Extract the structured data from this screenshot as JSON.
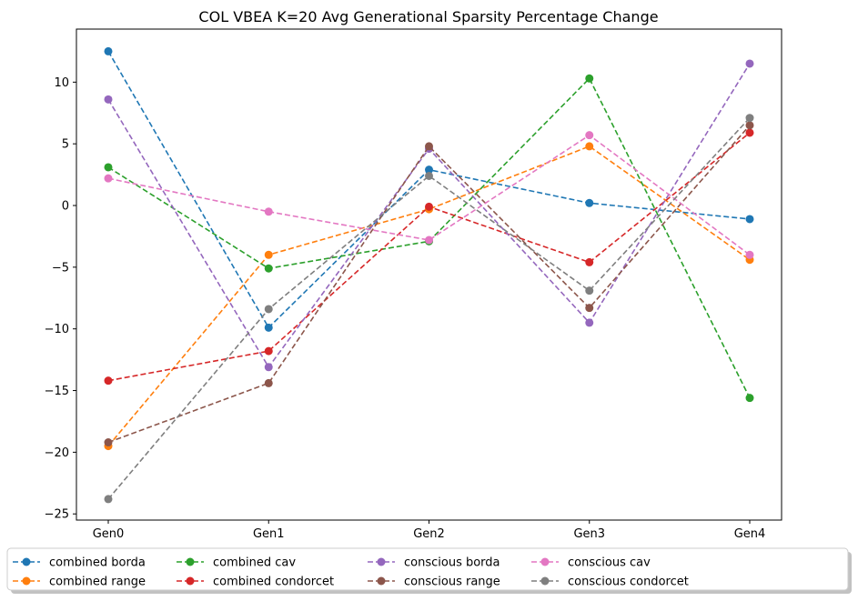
{
  "chart_data": {
    "type": "line",
    "title": "COL VBEA K=20 Avg Generational Sparsity Percentage Change",
    "xlabel": "",
    "ylabel": "",
    "categories": [
      "Gen0",
      "Gen1",
      "Gen2",
      "Gen3",
      "Gen4"
    ],
    "yticks": [
      -25,
      -20,
      -15,
      -10,
      -5,
      0,
      5,
      10
    ],
    "ylim": [
      -25.5,
      14.3
    ],
    "grid": false,
    "line_style": "dashed",
    "marker": "circle",
    "legend_position": "bottom-center, below plot, 5 columns",
    "series": [
      {
        "name": "combined borda",
        "color": "#1f77b4",
        "values": [
          12.5,
          -9.9,
          2.9,
          0.2,
          -1.1
        ]
      },
      {
        "name": "combined range",
        "color": "#ff7f0e",
        "values": [
          -19.5,
          -4.0,
          -0.3,
          4.8,
          -4.4
        ]
      },
      {
        "name": "combined cav",
        "color": "#2ca02c",
        "values": [
          3.1,
          -5.1,
          -2.9,
          10.3,
          -15.6
        ]
      },
      {
        "name": "combined condorcet",
        "color": "#d62728",
        "values": [
          -14.2,
          -11.8,
          -0.1,
          -4.6,
          5.9
        ]
      },
      {
        "name": "conscious borda",
        "color": "#9467bd",
        "values": [
          8.6,
          -13.1,
          4.6,
          -9.5,
          11.5
        ]
      },
      {
        "name": "conscious range",
        "color": "#8c564b",
        "values": [
          -19.2,
          -14.4,
          4.8,
          -8.3,
          6.5
        ]
      },
      {
        "name": "conscious cav",
        "color": "#e377c2",
        "values": [
          2.2,
          -0.5,
          -2.8,
          5.7,
          -4.0
        ]
      },
      {
        "name": "conscious condorcet",
        "color": "#7f7f7f",
        "values": [
          -23.8,
          -8.4,
          2.4,
          -6.9,
          7.1
        ]
      }
    ]
  }
}
